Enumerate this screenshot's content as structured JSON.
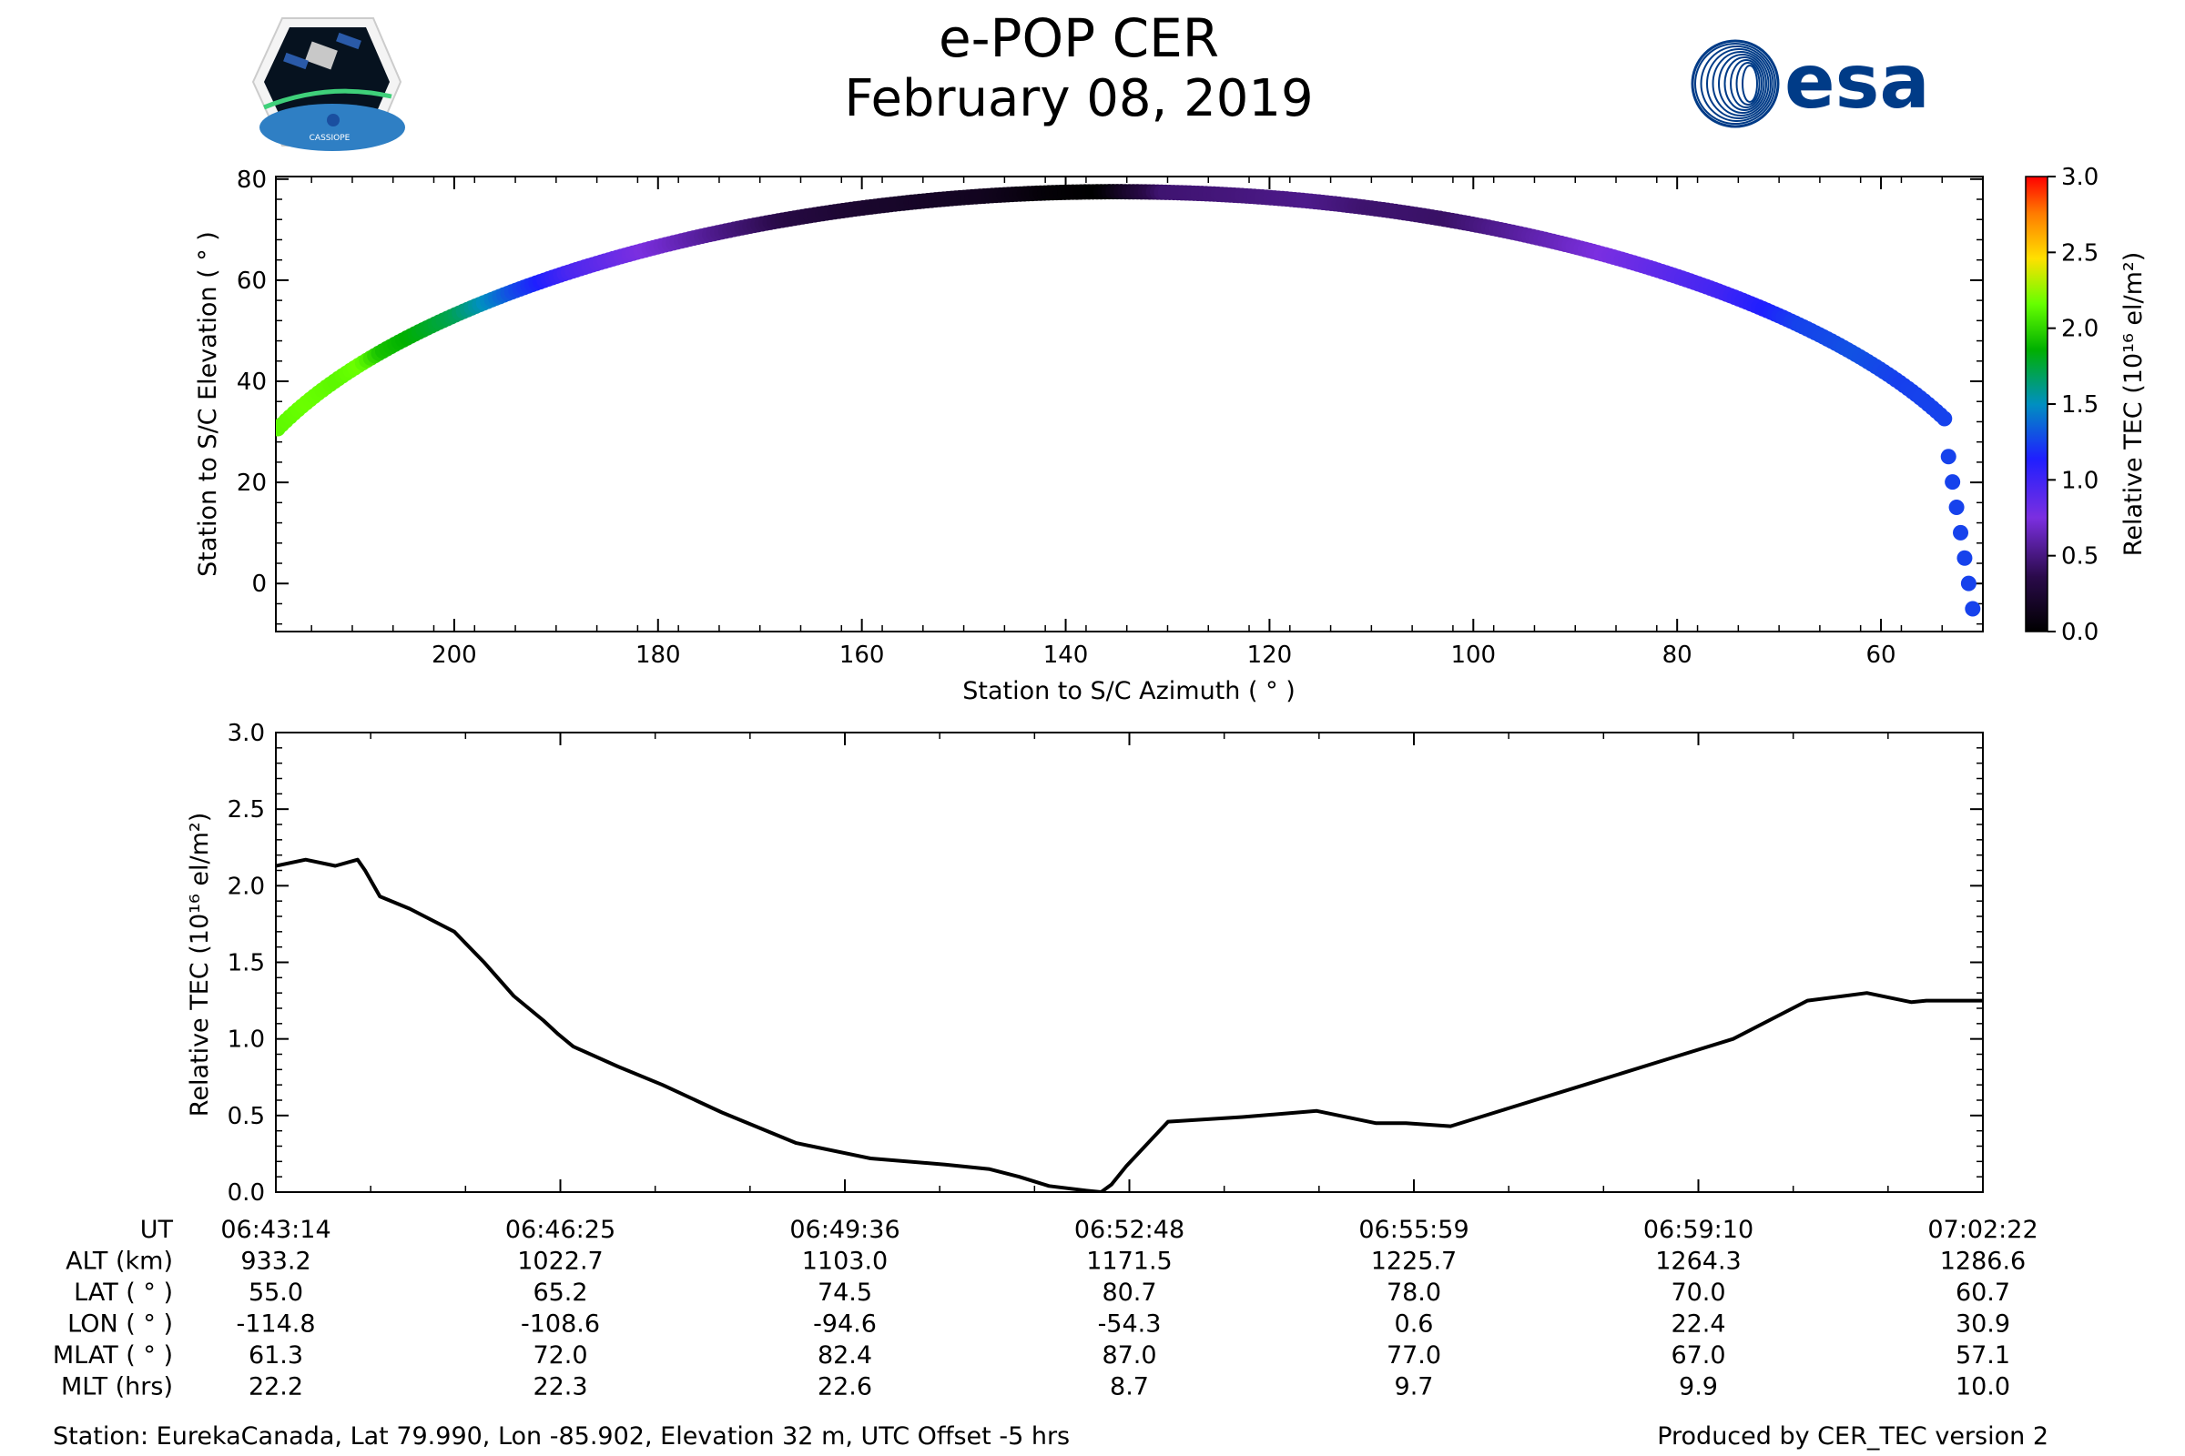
{
  "header": {
    "title": "e-POP CER",
    "date": "February 08, 2019",
    "left_logo_text": "CASSIOPE",
    "right_logo_text": "esa"
  },
  "colors": {
    "axis": "#000000",
    "line": "#000000",
    "esa_blue": "#003b87"
  },
  "chart_data": [
    {
      "type": "scatter",
      "name": "sky-track",
      "xlabel": "Station to S/C Azimuth ( ° )",
      "ylabel": "Station to S/C Elevation ( ° )",
      "xlim": [
        217.5,
        50.0
      ],
      "ylim": [
        -9.5,
        80.5
      ],
      "xticks": [
        200,
        180,
        160,
        140,
        120,
        100,
        80,
        60
      ],
      "xtick_labels": [
        "200",
        "180",
        "160",
        "140",
        "120",
        "100",
        "80",
        "60"
      ],
      "yticks": [
        0,
        20,
        40,
        60,
        80
      ],
      "ytick_labels": [
        "0",
        "20",
        "40",
        "60",
        "80"
      ],
      "track_start_az": 217.3,
      "track_end_az": 51.0,
      "max_elevation": 77.5,
      "colorbar": {
        "label": "Relative TEC (10¹⁶ el/m²)",
        "range": [
          0.0,
          3.0
        ],
        "ticks": [
          "0.0",
          "0.5",
          "1.0",
          "1.5",
          "2.0",
          "2.5",
          "3.0"
        ]
      }
    },
    {
      "type": "line",
      "name": "tec-time-series",
      "ylabel": "Relative TEC (10¹⁶ el/m²)",
      "ylim": [
        0.0,
        3.0
      ],
      "yticks": [
        0.0,
        0.5,
        1.0,
        1.5,
        2.0,
        2.5,
        3.0
      ],
      "ytick_labels": [
        "0.0",
        "0.5",
        "1.0",
        "1.5",
        "2.0",
        "2.5",
        "3.0"
      ],
      "xlim": [
        0,
        1148
      ],
      "x": [
        0,
        20,
        40,
        55,
        60,
        70,
        90,
        120,
        140,
        160,
        180,
        190,
        200,
        230,
        260,
        300,
        350,
        400,
        450,
        480,
        500,
        520,
        545,
        555,
        562,
        572,
        600,
        650,
        700,
        740,
        760,
        790,
        830,
        880,
        930,
        980,
        1030,
        1070,
        1100,
        1110,
        1148
      ],
      "y": [
        2.13,
        2.17,
        2.13,
        2.17,
        2.1,
        1.93,
        1.85,
        1.7,
        1.5,
        1.28,
        1.12,
        1.03,
        0.95,
        0.82,
        0.7,
        0.52,
        0.32,
        0.22,
        0.18,
        0.15,
        0.1,
        0.04,
        0.01,
        0.0,
        0.05,
        0.17,
        0.46,
        0.49,
        0.53,
        0.45,
        0.45,
        0.43,
        0.55,
        0.7,
        0.85,
        1.0,
        1.25,
        1.3,
        1.24,
        1.25,
        1.25
      ]
    }
  ],
  "orbit_table": {
    "row_labels": [
      "UT",
      "ALT (km)",
      "LAT ( ° )",
      "LON ( ° )",
      "MLAT ( ° )",
      "MLT (hrs)"
    ],
    "columns": [
      [
        "06:43:14",
        "933.2",
        "55.0",
        "-114.8",
        "61.3",
        "22.2"
      ],
      [
        "06:46:25",
        "1022.7",
        "65.2",
        "-108.6",
        "72.0",
        "22.3"
      ],
      [
        "06:49:36",
        "1103.0",
        "74.5",
        "-94.6",
        "82.4",
        "22.6"
      ],
      [
        "06:52:48",
        "1171.5",
        "80.7",
        "-54.3",
        "87.0",
        "8.7"
      ],
      [
        "06:55:59",
        "1225.7",
        "78.0",
        "0.6",
        "77.0",
        "9.7"
      ],
      [
        "06:59:10",
        "1264.3",
        "70.0",
        "22.4",
        "67.0",
        "9.9"
      ],
      [
        "07:02:22",
        "1286.6",
        "60.7",
        "30.9",
        "57.1",
        "10.0"
      ]
    ]
  },
  "footer": {
    "station": "Station: EurekaCanada, Lat 79.990, Lon -85.902, Elevation 32 m, UTC Offset -5 hrs",
    "produced_by": "Produced by CER_TEC version 2"
  }
}
